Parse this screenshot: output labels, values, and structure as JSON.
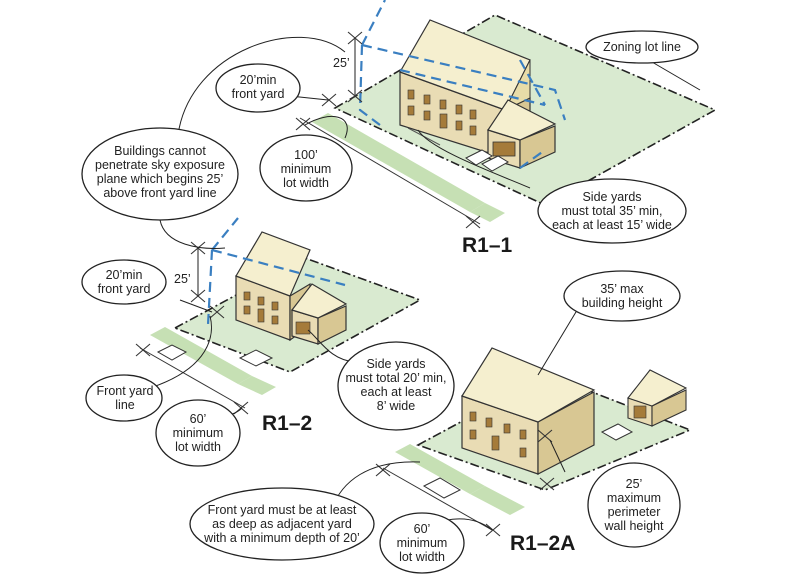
{
  "titles": {
    "r1_1": "R1–1",
    "r1_2": "R1–2",
    "r1_2a": "R1–2A"
  },
  "callouts": {
    "zoning_lot_line": "Zoning lot line",
    "front_yard_20_top": [
      "20’min",
      "front yard"
    ],
    "sky_plane": [
      "Buildings cannot",
      "penetrate sky exposure",
      "plane which begins 25’",
      "above front yard line"
    ],
    "lot_width_100": [
      "100’",
      "minimum",
      "lot width"
    ],
    "side_yards_35": [
      "Side yards",
      "must total 35’ min,",
      "each at least 15’ wide"
    ],
    "front_yard_20_mid": [
      "20’min",
      "front yard"
    ],
    "front_yard_line": [
      "Front yard",
      "line"
    ],
    "lot_width_60_left": [
      "60’",
      "minimum",
      "lot width"
    ],
    "side_yards_20": [
      "Side yards",
      "must total 20’ min,",
      "each at least",
      "8’ wide"
    ],
    "max_height_35": [
      "35’ max",
      "building height"
    ],
    "front_yard_depth": [
      "Front yard must be at least",
      "as deep as adjacent yard",
      "with a minimum depth of 20’"
    ],
    "lot_width_60_bottom": [
      "60’",
      "minimum",
      "lot width"
    ],
    "perimeter_25": [
      "25’",
      "maximum",
      "perimeter",
      "wall height"
    ]
  },
  "dimensions": {
    "top_25": "25’",
    "mid_25": "25’"
  },
  "colors": {
    "lot_green": "#d9ead0",
    "strip_green": "#c6e0b4",
    "house_wall": "#e9dcb4",
    "house_roof": "#f5efcf",
    "house_side": "#d8c793",
    "sky_plane_blue": "#3a7fc1",
    "outline": "#333333"
  }
}
